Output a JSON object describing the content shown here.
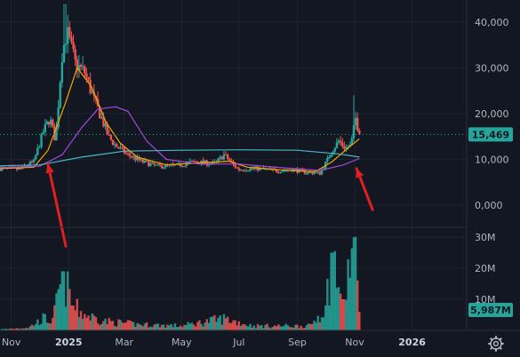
{
  "colors": {
    "background": "#131722",
    "grid": "#1f2330",
    "up": "#26a69a",
    "down": "#ef5350",
    "ma_fast": "#f7a600",
    "ma_mid": "#a64ad9",
    "ma_slow": "#4db6c8",
    "badge": "#26a69a",
    "arrow": "#e02020"
  },
  "chart_data": {
    "type": "candlestick",
    "price_axis": {
      "ylim": [
        0,
        45000
      ],
      "ticks": [
        0,
        10000,
        20000,
        30000,
        40000
      ],
      "tick_labels": [
        "0,000",
        "10,000",
        "20,000",
        "30,000",
        "40,000"
      ]
    },
    "volume_axis": {
      "ylim": [
        0,
        32000000
      ],
      "ticks": [
        10000000,
        20000000,
        30000000
      ],
      "tick_labels": [
        "10M",
        "20M",
        "30M"
      ]
    },
    "x_axis": {
      "range": [
        "2024-10-20",
        "2026-02-28"
      ],
      "ticks": [
        {
          "date": "2024-11-01",
          "label": "Nov",
          "bold": false
        },
        {
          "date": "2025-01-01",
          "label": "2025",
          "bold": true
        },
        {
          "date": "2025-03-01",
          "label": "Mar",
          "bold": false
        },
        {
          "date": "2025-05-01",
          "label": "May",
          "bold": false
        },
        {
          "date": "2025-07-01",
          "label": "Jul",
          "bold": false
        },
        {
          "date": "2025-09-01",
          "label": "Sep",
          "bold": false
        },
        {
          "date": "2025-11-01",
          "label": "Nov",
          "bold": false
        },
        {
          "date": "2026-01-01",
          "label": "2026",
          "bold": true
        }
      ]
    },
    "last_price": 15469,
    "last_price_label": "15,469",
    "last_volume_label": "5,987M",
    "price_path": [
      {
        "date": "2024-10-20",
        "close": 8000
      },
      {
        "date": "2024-11-10",
        "close": 7800
      },
      {
        "date": "2024-11-25",
        "close": 9500
      },
      {
        "date": "2024-12-05",
        "close": 16000
      },
      {
        "date": "2024-12-12",
        "close": 19000
      },
      {
        "date": "2024-12-18",
        "close": 14000
      },
      {
        "date": "2024-12-25",
        "close": 33000
      },
      {
        "date": "2024-12-30",
        "close": 38000
      },
      {
        "date": "2025-01-08",
        "close": 31000
      },
      {
        "date": "2025-01-18",
        "close": 29000
      },
      {
        "date": "2025-01-28",
        "close": 23000
      },
      {
        "date": "2025-02-05",
        "close": 19000
      },
      {
        "date": "2025-02-12",
        "close": 15000
      },
      {
        "date": "2025-02-20",
        "close": 13000
      },
      {
        "date": "2025-03-05",
        "close": 11000
      },
      {
        "date": "2025-03-20",
        "close": 9500
      },
      {
        "date": "2025-04-05",
        "close": 8500
      },
      {
        "date": "2025-04-25",
        "close": 8600
      },
      {
        "date": "2025-05-15",
        "close": 9500
      },
      {
        "date": "2025-06-05",
        "close": 9000
      },
      {
        "date": "2025-06-15",
        "close": 11000
      },
      {
        "date": "2025-06-30",
        "close": 7800
      },
      {
        "date": "2025-07-20",
        "close": 8000
      },
      {
        "date": "2025-08-10",
        "close": 7500
      },
      {
        "date": "2025-08-25",
        "close": 7800
      },
      {
        "date": "2025-09-10",
        "close": 7200
      },
      {
        "date": "2025-09-25",
        "close": 7000
      },
      {
        "date": "2025-10-02",
        "close": 9500
      },
      {
        "date": "2025-10-08",
        "close": 12000
      },
      {
        "date": "2025-10-15",
        "close": 14000
      },
      {
        "date": "2025-10-22",
        "close": 12500
      },
      {
        "date": "2025-10-28",
        "close": 13000
      },
      {
        "date": "2025-11-02",
        "close": 19000
      },
      {
        "date": "2025-11-06",
        "close": 15469
      }
    ],
    "highs": [
      {
        "date": "2024-12-28",
        "high": 44000
      },
      {
        "date": "2025-10-31",
        "high": 24000
      }
    ],
    "volume_path": [
      {
        "date": "2024-10-20",
        "volume": 300000
      },
      {
        "date": "2024-11-20",
        "volume": 1000000
      },
      {
        "date": "2024-12-05",
        "volume": 4000000
      },
      {
        "date": "2024-12-15",
        "volume": 3000000
      },
      {
        "date": "2024-12-26",
        "volume": 19000000
      },
      {
        "date": "2025-01-05",
        "volume": 8000000
      },
      {
        "date": "2025-01-20",
        "volume": 5000000
      },
      {
        "date": "2025-02-10",
        "volume": 3000000
      },
      {
        "date": "2025-03-15",
        "volume": 2000000
      },
      {
        "date": "2025-05-01",
        "volume": 1500000
      },
      {
        "date": "2025-06-15",
        "volume": 4000000
      },
      {
        "date": "2025-07-15",
        "volume": 1500000
      },
      {
        "date": "2025-09-15",
        "volume": 1500000
      },
      {
        "date": "2025-10-01",
        "volume": 8000000
      },
      {
        "date": "2025-10-08",
        "volume": 25000000
      },
      {
        "date": "2025-10-20",
        "volume": 10000000
      },
      {
        "date": "2025-10-31",
        "volume": 30000000
      },
      {
        "date": "2025-11-06",
        "volume": 5987000
      }
    ],
    "moving_averages": [
      {
        "color_key": "ma_fast",
        "path": [
          {
            "date": "2024-10-20",
            "value": 8000
          },
          {
            "date": "2024-11-25",
            "value": 8300
          },
          {
            "date": "2024-12-10",
            "value": 12000
          },
          {
            "date": "2024-12-28",
            "value": 22000
          },
          {
            "date": "2025-01-10",
            "value": 30000
          },
          {
            "date": "2025-01-25",
            "value": 26000
          },
          {
            "date": "2025-02-10",
            "value": 18000
          },
          {
            "date": "2025-02-25",
            "value": 13500
          },
          {
            "date": "2025-03-15",
            "value": 10500
          },
          {
            "date": "2025-04-15",
            "value": 8800
          },
          {
            "date": "2025-05-15",
            "value": 9200
          },
          {
            "date": "2025-06-20",
            "value": 9600
          },
          {
            "date": "2025-07-10",
            "value": 8300
          },
          {
            "date": "2025-08-15",
            "value": 7700
          },
          {
            "date": "2025-09-20",
            "value": 7300
          },
          {
            "date": "2025-10-08",
            "value": 9500
          },
          {
            "date": "2025-10-25",
            "value": 12500
          },
          {
            "date": "2025-11-06",
            "value": 14500
          }
        ]
      },
      {
        "color_key": "ma_mid",
        "path": [
          {
            "date": "2024-10-20",
            "value": 8200
          },
          {
            "date": "2024-12-01",
            "value": 8500
          },
          {
            "date": "2024-12-25",
            "value": 11000
          },
          {
            "date": "2025-01-15",
            "value": 17000
          },
          {
            "date": "2025-02-01",
            "value": 21000
          },
          {
            "date": "2025-02-20",
            "value": 21500
          },
          {
            "date": "2025-03-05",
            "value": 20500
          },
          {
            "date": "2025-03-25",
            "value": 14000
          },
          {
            "date": "2025-04-15",
            "value": 10000
          },
          {
            "date": "2025-05-20",
            "value": 9000
          },
          {
            "date": "2025-07-01",
            "value": 9000
          },
          {
            "date": "2025-08-15",
            "value": 8200
          },
          {
            "date": "2025-09-25",
            "value": 7600
          },
          {
            "date": "2025-10-20",
            "value": 8800
          },
          {
            "date": "2025-11-06",
            "value": 10200
          }
        ]
      },
      {
        "color_key": "ma_slow",
        "path": [
          {
            "date": "2024-10-20",
            "value": 8600
          },
          {
            "date": "2024-12-01",
            "value": 8800
          },
          {
            "date": "2025-01-15",
            "value": 10500
          },
          {
            "date": "2025-03-01",
            "value": 11800
          },
          {
            "date": "2025-05-01",
            "value": 12000
          },
          {
            "date": "2025-07-01",
            "value": 12100
          },
          {
            "date": "2025-09-01",
            "value": 12000
          },
          {
            "date": "2025-10-15",
            "value": 11200
          },
          {
            "date": "2025-11-06",
            "value": 10500
          }
        ]
      }
    ],
    "annotations": [
      {
        "type": "arrow",
        "from": {
          "date": "2024-12-29",
          "price": -9000
        },
        "to": {
          "date": "2024-12-10",
          "price": 9000
        }
      },
      {
        "type": "arrow",
        "from": {
          "date": "2025-11-20",
          "price": -1000
        },
        "to": {
          "date": "2025-11-03",
          "price": 8000
        }
      }
    ]
  },
  "settings_icon": "gear-icon"
}
